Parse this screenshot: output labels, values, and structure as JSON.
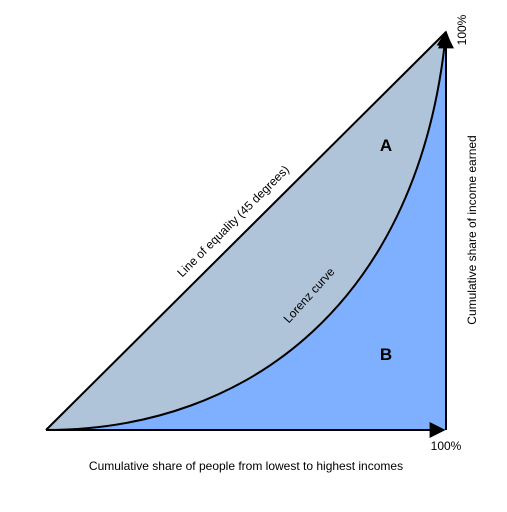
{
  "diagram": {
    "equality_label": "Line of equality (45 degrees)",
    "curve_label": "Lorenz curve",
    "area_a": "A",
    "area_b": "B",
    "x_axis_label": "Cumulative share of people from lowest to highest incomes",
    "y_axis_label": "Cumulative share of income earned",
    "x_end_label": "100%",
    "y_end_label": "100%"
  }
}
